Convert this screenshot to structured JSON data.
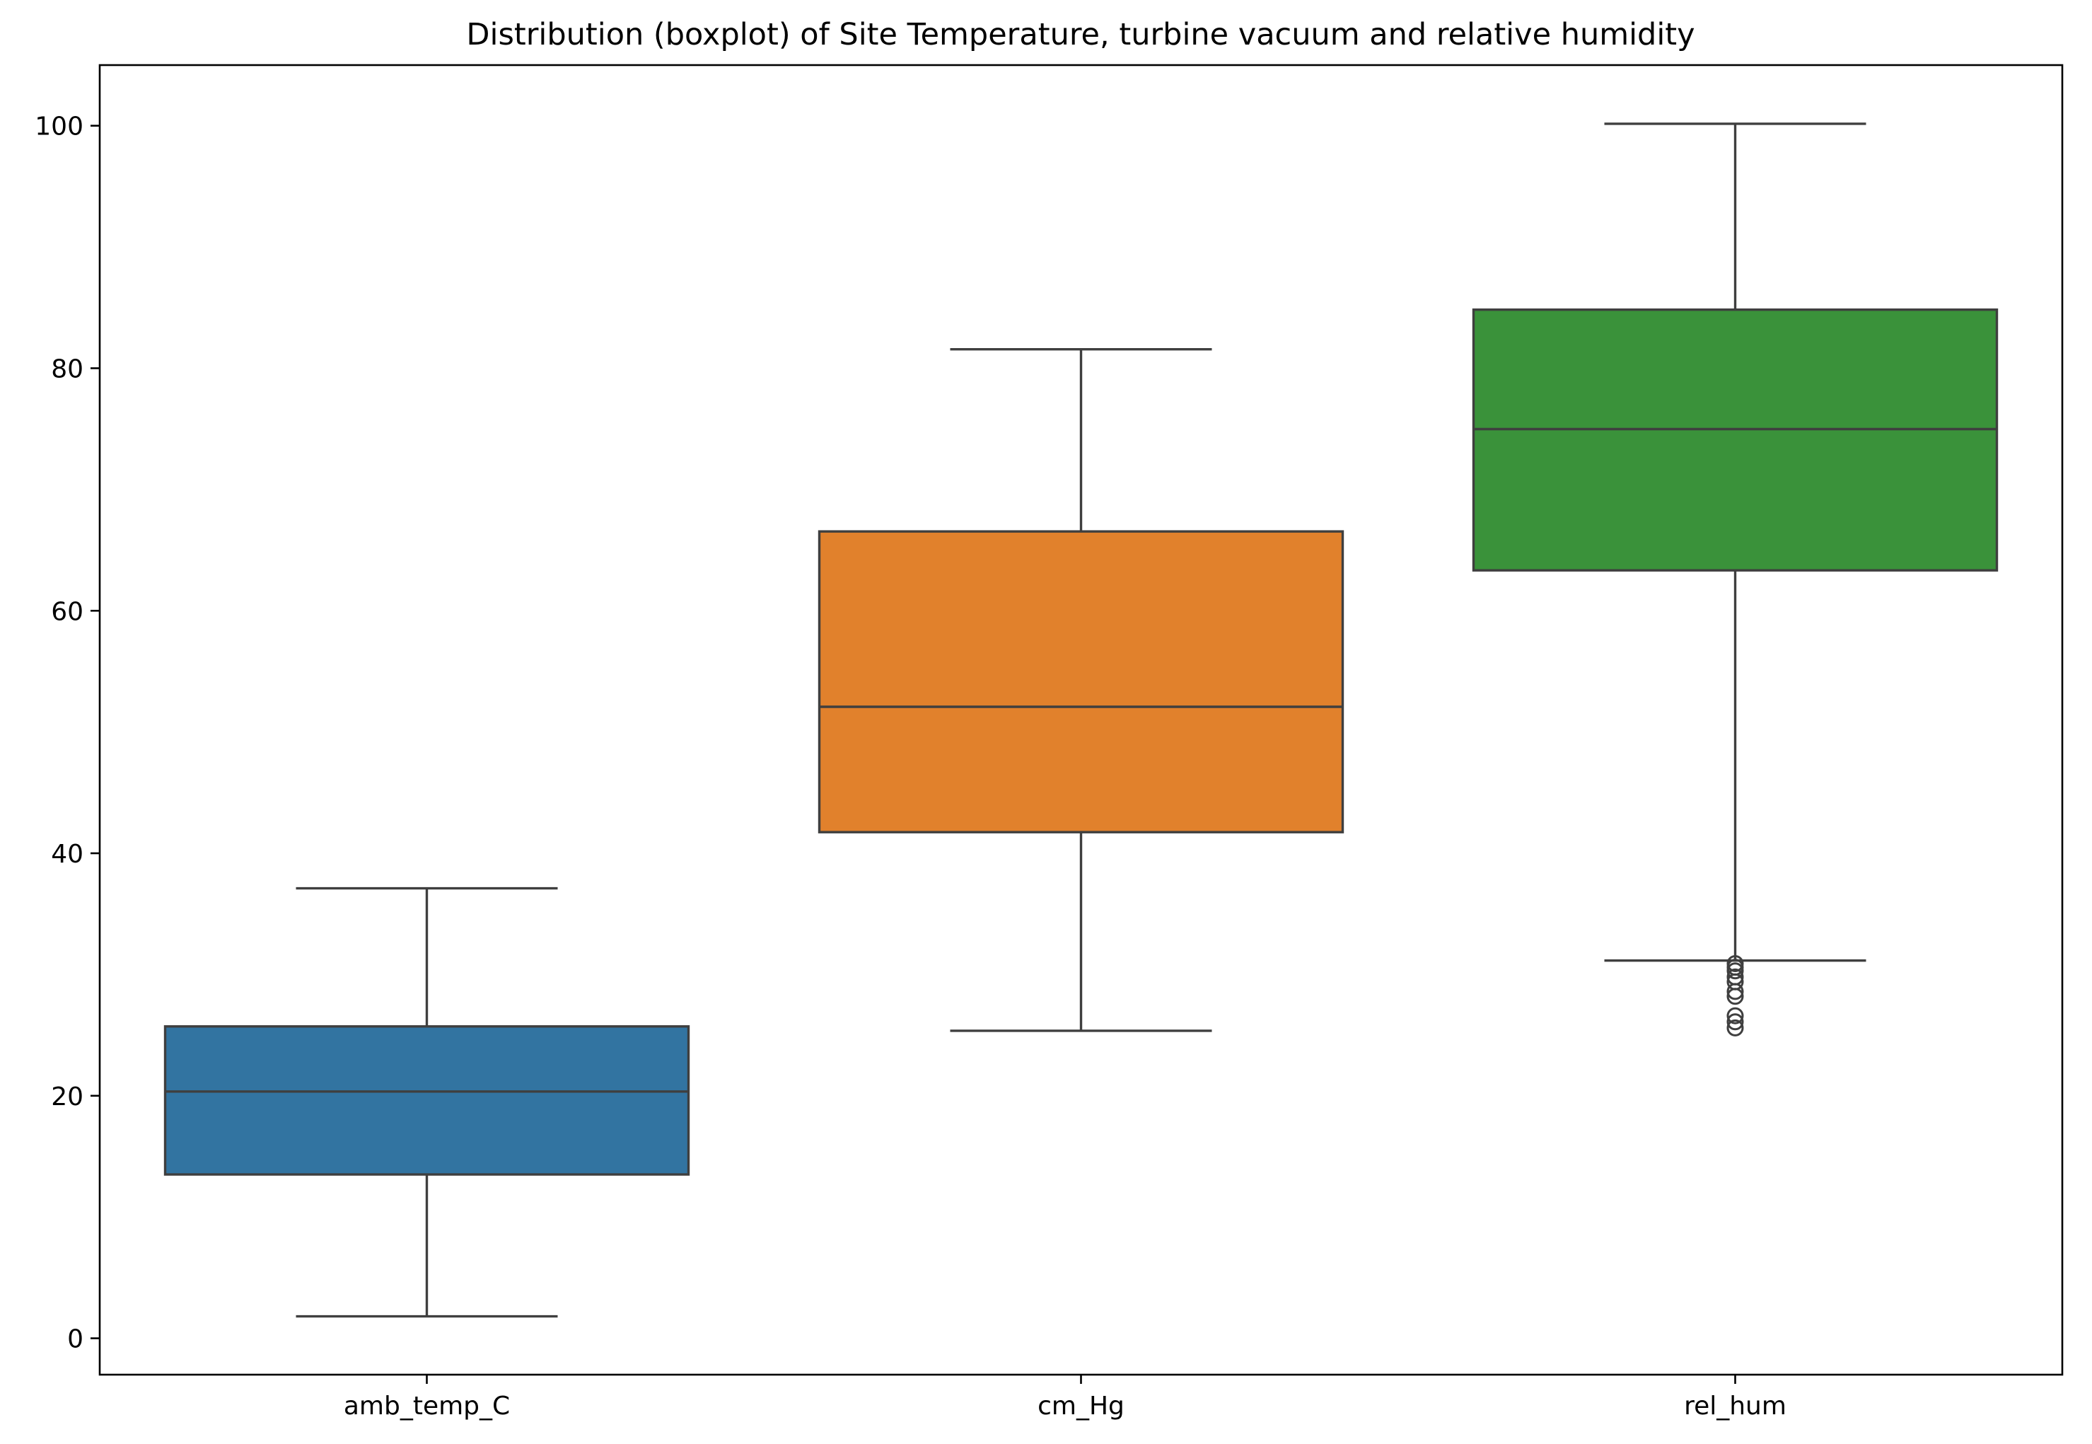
{
  "chart_data": {
    "type": "boxplot",
    "title": "Distribution (boxplot) of Site Temperature, turbine vacuum and relative humidity",
    "xlabel": "",
    "ylabel": "",
    "categories": [
      "amb_temp_C",
      "cm_Hg",
      "rel_hum"
    ],
    "ylim": [
      -3,
      105
    ],
    "yticks": [
      0,
      20,
      40,
      60,
      80,
      100
    ],
    "grid": false,
    "boxes": [
      {
        "name": "amb_temp_C",
        "color": "#3274a1",
        "whisker_low": 1.81,
        "q1": 13.51,
        "median": 20.35,
        "q3": 25.72,
        "whisker_high": 37.11,
        "outliers": []
      },
      {
        "name": "cm_Hg",
        "color": "#e1812c",
        "whisker_low": 25.36,
        "q1": 41.74,
        "median": 52.08,
        "q3": 66.54,
        "whisker_high": 81.56,
        "outliers": []
      },
      {
        "name": "rel_hum",
        "color": "#3a923a",
        "whisker_low": 31.15,
        "q1": 63.33,
        "median": 74.98,
        "q3": 84.83,
        "whisker_high": 100.16,
        "outliers": [
          30.9,
          30.6,
          30.3,
          29.8,
          29.4,
          28.6,
          28.2,
          26.6,
          26.1,
          25.6
        ]
      }
    ]
  }
}
